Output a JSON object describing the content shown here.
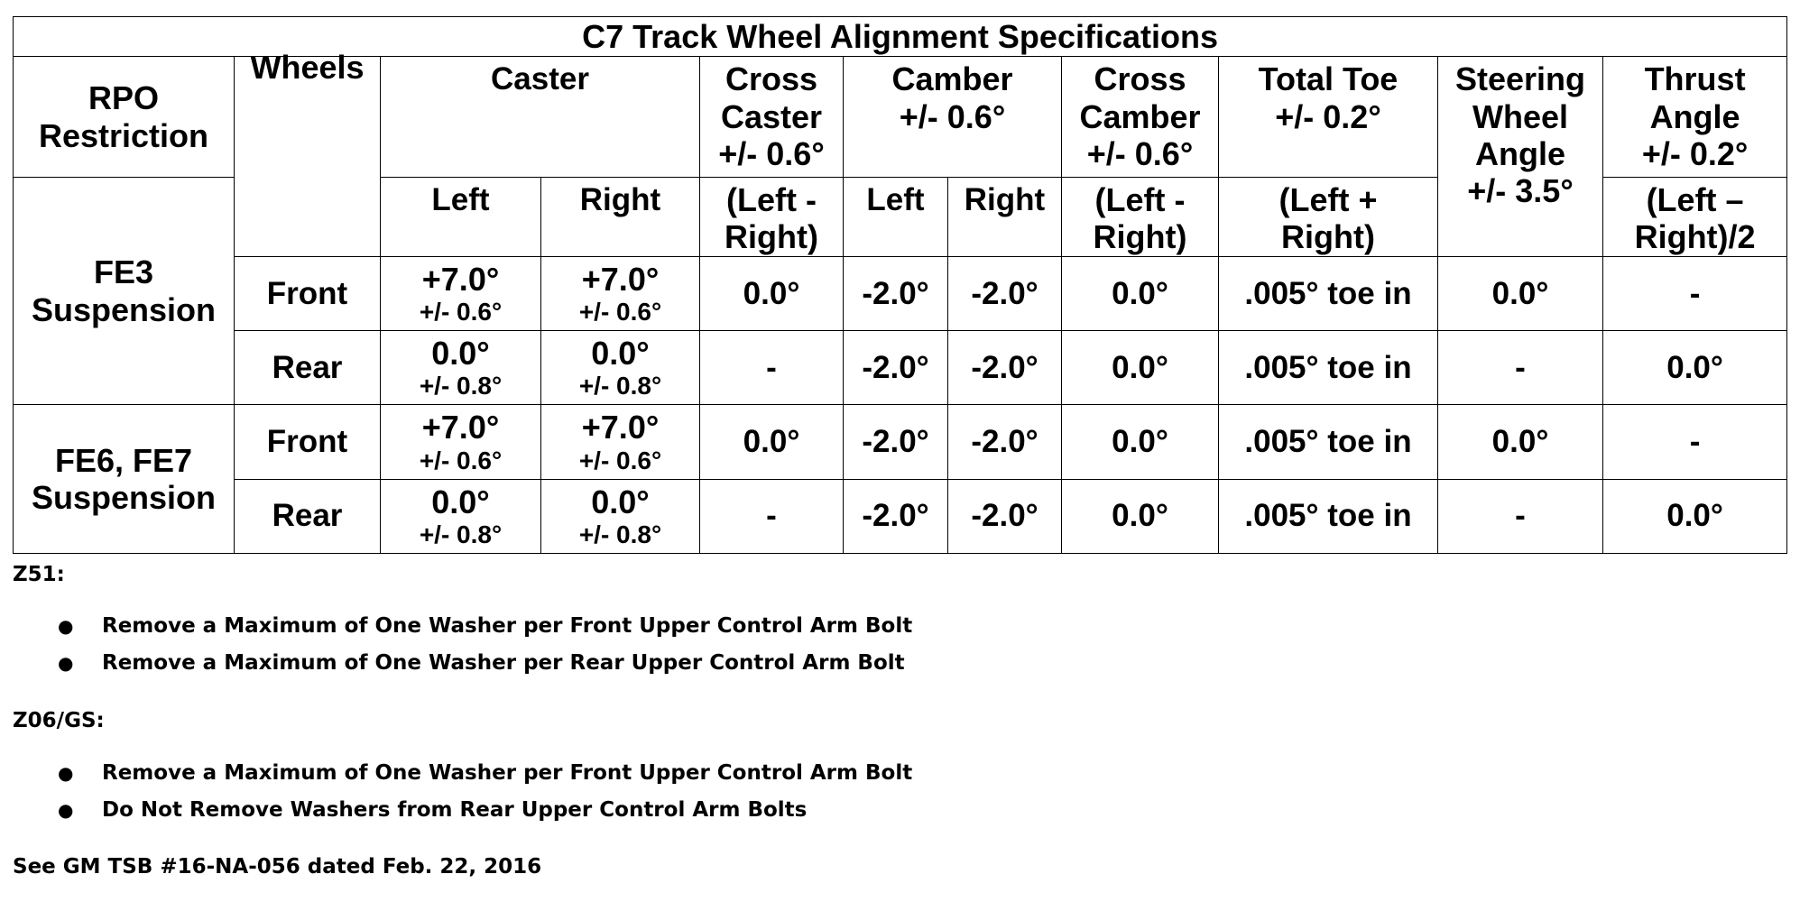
{
  "table": {
    "title": "C7 Track Wheel Alignment Specifications",
    "headers": {
      "rpo": [
        "RPO",
        "Restriction"
      ],
      "wheels": "Wheels",
      "caster": "Caster",
      "cross_caster": [
        "Cross",
        "Caster",
        "+/- 0.6°"
      ],
      "camber": [
        "Camber",
        "+/- 0.6°"
      ],
      "cross_camber": [
        "Cross",
        "Camber",
        "+/- 0.6°"
      ],
      "total_toe": [
        "Total Toe",
        "+/- 0.2°"
      ],
      "steering": [
        "Steering",
        "Wheel",
        "Angle",
        "+/- 3.5°"
      ],
      "thrust": [
        "Thrust",
        "Angle",
        "+/- 0.2°"
      ]
    },
    "subheaders": {
      "caster_left": "Left",
      "caster_right": "Right",
      "cross_caster": [
        "(Left -",
        "Right)"
      ],
      "camber_left": "Left",
      "camber_right": "Right",
      "cross_camber": [
        "(Left -",
        "Right)"
      ],
      "total_toe": [
        "(Left +",
        "Right)"
      ],
      "thrust": [
        "(Left –",
        "Right)/2"
      ]
    },
    "groups": [
      {
        "name": [
          "FE3",
          "Suspension"
        ],
        "rows": [
          {
            "wheels": "Front",
            "caster_left": [
              "+7.0°",
              "+/- 0.6°"
            ],
            "caster_right": [
              "+7.0°",
              "+/- 0.6°"
            ],
            "cross_caster": "0.0°",
            "camber_left": "-2.0°",
            "camber_right": "-2.0°",
            "cross_camber": "0.0°",
            "total_toe": ".005° toe in",
            "steering": "0.0°",
            "thrust": "-"
          },
          {
            "wheels": "Rear",
            "caster_left": [
              "0.0°",
              "+/- 0.8°"
            ],
            "caster_right": [
              "0.0°",
              "+/- 0.8°"
            ],
            "cross_caster": "-",
            "camber_left": "-2.0°",
            "camber_right": "-2.0°",
            "cross_camber": "0.0°",
            "total_toe": ".005° toe in",
            "steering": "-",
            "thrust": "0.0°"
          }
        ]
      },
      {
        "name": [
          "FE6, FE7",
          "Suspension"
        ],
        "rows": [
          {
            "wheels": "Front",
            "caster_left": [
              "+7.0°",
              "+/- 0.6°"
            ],
            "caster_right": [
              "+7.0°",
              "+/- 0.6°"
            ],
            "cross_caster": "0.0°",
            "camber_left": "-2.0°",
            "camber_right": "-2.0°",
            "cross_camber": "0.0°",
            "total_toe": ".005° toe in",
            "steering": "0.0°",
            "thrust": "-"
          },
          {
            "wheels": "Rear",
            "caster_left": [
              "0.0°",
              "+/- 0.8°"
            ],
            "caster_right": [
              "0.0°",
              "+/- 0.8°"
            ],
            "cross_caster": "-",
            "camber_left": "-2.0°",
            "camber_right": "-2.0°",
            "cross_camber": "0.0°",
            "total_toe": ".005° toe in",
            "steering": "-",
            "thrust": "0.0°"
          }
        ]
      }
    ]
  },
  "notes": {
    "z51_heading": "Z51:",
    "z51_items": [
      "Remove a Maximum of One Washer per Front Upper Control Arm Bolt",
      "Remove a Maximum of One Washer per Rear Upper Control Arm Bolt"
    ],
    "z06_heading": "Z06/GS:",
    "z06_items": [
      "Remove a Maximum of One Washer per Front Upper Control Arm Bolt",
      "Do Not Remove Washers from Rear Upper Control Arm Bolts"
    ],
    "bullet": "●",
    "footer": "See GM TSB #16-NA-056 dated Feb. 22, 2016"
  }
}
